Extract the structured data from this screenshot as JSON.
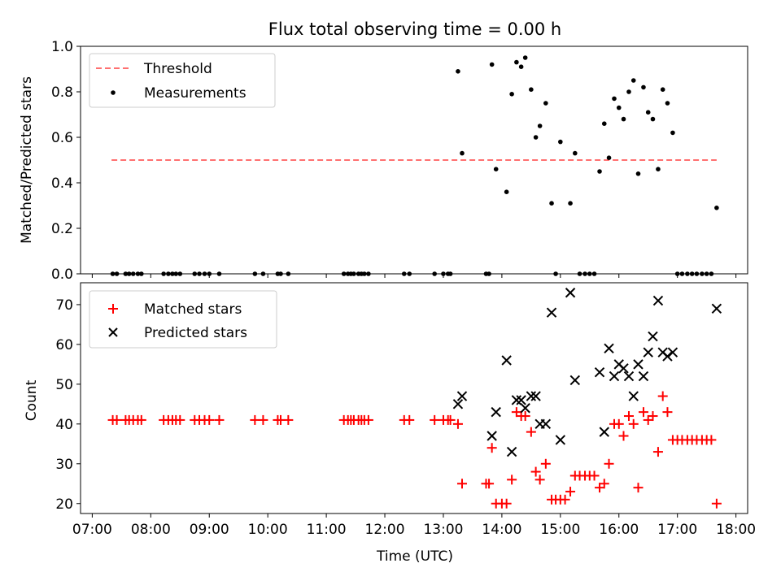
{
  "title": "Flux total observing time = 0.00 h",
  "colors": {
    "threshold": "#ff7070",
    "matched": "#ff0000",
    "predicted": "#000000",
    "measurement": "#000000"
  },
  "chart_data": [
    {
      "type": "line",
      "panel": "top",
      "ylabel": "Matched/Predicted stars",
      "ylim": [
        0,
        1.0
      ],
      "yticks": [
        "0.0",
        "0.2",
        "0.4",
        "0.6",
        "0.8",
        "1.0"
      ],
      "xlim": [
        6.8,
        18.2
      ],
      "legend_position": "upper-left",
      "legend": [
        "Threshold",
        "Measurements"
      ],
      "series": [
        {
          "name": "Threshold",
          "style": "dashed-line",
          "x": [
            7.33,
            17.67
          ],
          "y": [
            0.5,
            0.5
          ]
        },
        {
          "name": "Measurements",
          "style": "scatter-dot",
          "x": [
            7.35,
            7.42,
            7.57,
            7.63,
            7.7,
            7.78,
            7.84,
            8.22,
            8.3,
            8.37,
            8.43,
            8.5,
            8.75,
            8.83,
            8.92,
            9.0,
            9.17,
            9.78,
            9.92,
            10.17,
            10.22,
            10.35,
            11.3,
            11.37,
            11.42,
            11.47,
            11.55,
            11.6,
            11.65,
            11.72,
            12.33,
            12.42,
            12.85,
            13.0,
            13.08,
            13.12,
            13.25,
            13.32,
            13.73,
            13.78,
            13.83,
            13.9,
            14.08,
            14.17,
            14.25,
            14.33,
            14.4,
            14.5,
            14.58,
            14.65,
            14.75,
            14.85,
            14.92,
            15.0,
            15.17,
            15.25,
            15.33,
            15.42,
            15.5,
            15.58,
            15.67,
            15.75,
            15.83,
            15.92,
            16.0,
            16.08,
            16.17,
            16.25,
            16.33,
            16.42,
            16.5,
            16.58,
            16.67,
            16.75,
            16.83,
            16.92,
            17.0,
            17.08,
            17.17,
            17.25,
            17.33,
            17.42,
            17.5,
            17.58,
            17.67
          ],
          "y": [
            0,
            0,
            0,
            0,
            0,
            0,
            0,
            0,
            0,
            0,
            0,
            0,
            0,
            0,
            0,
            0,
            0,
            0,
            0,
            0,
            0,
            0,
            0,
            0,
            0,
            0,
            0,
            0,
            0,
            0,
            0,
            0,
            0,
            0,
            0,
            0,
            0.89,
            0.53,
            0,
            0,
            0.92,
            0.46,
            0.36,
            0.79,
            0.93,
            0.91,
            0.95,
            0.81,
            0.6,
            0.65,
            0.75,
            0.31,
            0,
            0.58,
            0.31,
            0.53,
            0,
            0,
            0,
            0,
            0.45,
            0.66,
            0.51,
            0.77,
            0.73,
            0.68,
            0.8,
            0.85,
            0.44,
            0.82,
            0.71,
            0.68,
            0.46,
            0.81,
            0.75,
            0.62,
            0,
            0,
            0,
            0,
            0,
            0,
            0,
            0,
            0.29
          ]
        }
      ]
    },
    {
      "type": "scatter",
      "panel": "bottom",
      "xlabel": "Time (UTC)",
      "ylabel": "Count",
      "ylim": [
        17.5,
        75.5
      ],
      "yticks": [
        "20",
        "30",
        "40",
        "50",
        "60",
        "70"
      ],
      "xlim": [
        6.8,
        18.2
      ],
      "xticks": [
        "07:00",
        "08:00",
        "09:00",
        "10:00",
        "11:00",
        "12:00",
        "13:00",
        "14:00",
        "15:00",
        "16:00",
        "17:00",
        "18:00"
      ],
      "legend_position": "upper-left",
      "legend": [
        "Matched stars",
        "Predicted stars"
      ],
      "series": [
        {
          "name": "Matched stars",
          "marker": "plus",
          "x": [
            7.35,
            7.42,
            7.57,
            7.63,
            7.7,
            7.78,
            7.84,
            8.22,
            8.3,
            8.37,
            8.43,
            8.5,
            8.75,
            8.83,
            8.92,
            9.0,
            9.17,
            9.78,
            9.92,
            10.17,
            10.22,
            10.35,
            11.3,
            11.37,
            11.42,
            11.47,
            11.55,
            11.6,
            11.65,
            11.72,
            12.33,
            12.42,
            12.85,
            13.0,
            13.08,
            13.12,
            13.25,
            13.32,
            13.73,
            13.78,
            13.83,
            13.9,
            14.0,
            14.08,
            14.17,
            14.25,
            14.33,
            14.4,
            14.5,
            14.58,
            14.65,
            14.75,
            14.85,
            14.92,
            15.0,
            15.08,
            15.17,
            15.25,
            15.33,
            15.42,
            15.5,
            15.58,
            15.67,
            15.75,
            15.83,
            15.92,
            16.0,
            16.08,
            16.17,
            16.25,
            16.33,
            16.42,
            16.5,
            16.58,
            16.67,
            16.75,
            16.83,
            16.92,
            17.0,
            17.08,
            17.17,
            17.25,
            17.33,
            17.42,
            17.5,
            17.58,
            17.67
          ],
          "y": [
            41,
            41,
            41,
            41,
            41,
            41,
            41,
            41,
            41,
            41,
            41,
            41,
            41,
            41,
            41,
            41,
            41,
            41,
            41,
            41,
            41,
            41,
            41,
            41,
            41,
            41,
            41,
            41,
            41,
            41,
            41,
            41,
            41,
            41,
            41,
            41,
            40,
            25,
            25,
            25,
            34,
            20,
            20,
            20,
            26,
            43,
            42,
            42,
            38,
            28,
            26,
            30,
            21,
            21,
            21,
            21,
            23,
            27,
            27,
            27,
            27,
            27,
            24,
            25,
            30,
            40,
            40,
            37,
            42,
            40,
            24,
            43,
            41,
            42,
            33,
            47,
            43,
            36,
            36,
            36,
            36,
            36,
            36,
            36,
            36,
            36,
            20
          ]
        },
        {
          "name": "Predicted stars",
          "marker": "x",
          "x": [
            13.25,
            13.32,
            13.83,
            13.9,
            14.08,
            14.17,
            14.25,
            14.33,
            14.4,
            14.5,
            14.58,
            14.65,
            14.75,
            14.85,
            15.0,
            15.17,
            15.25,
            15.67,
            15.75,
            15.83,
            15.92,
            16.0,
            16.08,
            16.17,
            16.25,
            16.33,
            16.42,
            16.5,
            16.58,
            16.67,
            16.75,
            16.83,
            16.92,
            17.67
          ],
          "y": [
            45,
            47,
            37,
            43,
            56,
            33,
            46,
            46,
            44,
            47,
            47,
            40,
            40,
            68,
            36,
            73,
            51,
            53,
            38,
            59,
            52,
            55,
            54,
            52,
            47,
            55,
            52,
            58,
            62,
            71,
            58,
            57,
            58,
            69
          ]
        }
      ]
    }
  ]
}
